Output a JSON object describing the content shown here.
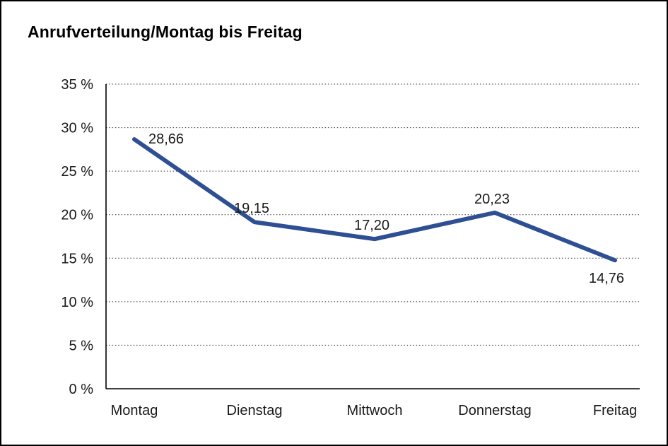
{
  "page": {
    "background": "#ffffff",
    "border_color": "#000000"
  },
  "chart_data": {
    "type": "line",
    "title": "Anrufverteilung/Montag bis Freitag",
    "categories": [
      "Montag",
      "Dienstag",
      "Mittwoch",
      "Donnerstag",
      "Freitag"
    ],
    "values": [
      28.66,
      19.15,
      17.2,
      20.23,
      14.76
    ],
    "value_labels": [
      "28,66",
      "19,15",
      "17,20",
      "20,23",
      "14,76"
    ],
    "label_positions": [
      "right",
      "above",
      "above",
      "above",
      "below-left"
    ],
    "xlabel": "",
    "ylabel": "",
    "ylim": [
      0,
      35
    ],
    "ytick_step": 5,
    "ytick_labels": [
      "0 %",
      "5 %",
      "10 %",
      "15 %",
      "20 %",
      "25 %",
      "30 %",
      "35 %"
    ],
    "grid": "dotted-horizontal",
    "legend": "none",
    "line_color": "#2e4f93",
    "axis_color": "#000000",
    "text_color": "#1a1a1a"
  }
}
